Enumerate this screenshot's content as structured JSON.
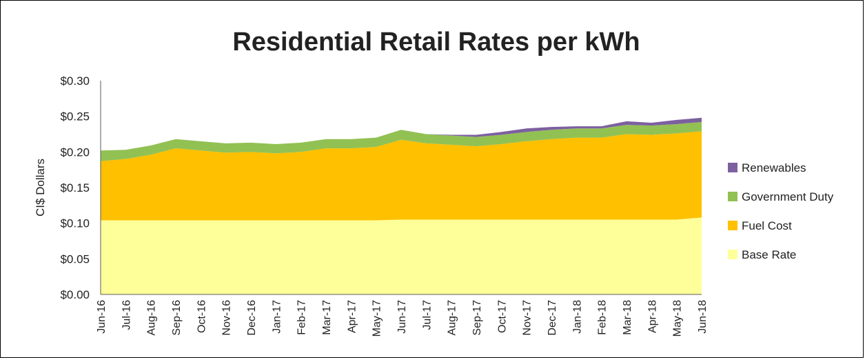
{
  "chart_data": {
    "type": "area",
    "stacked": true,
    "title": "Residential Retail Rates per kWh",
    "ylabel": "CI$ Dollars",
    "xlabel": "",
    "ylim": [
      0,
      0.3
    ],
    "yticks": [
      "$0.00",
      "$0.05",
      "$0.10",
      "$0.15",
      "$0.20",
      "$0.25",
      "$0.30"
    ],
    "ytick_values": [
      0,
      0.05,
      0.1,
      0.15,
      0.2,
      0.25,
      0.3
    ],
    "grid": false,
    "legend_position": "right",
    "categories": [
      "Jun-16",
      "Jul-16",
      "Aug-16",
      "Sep-16",
      "Oct-16",
      "Nov-16",
      "Dec-16",
      "Jan-17",
      "Feb-17",
      "Mar-17",
      "Apr-17",
      "May-17",
      "Jun-17",
      "Jul-17",
      "Aug-17",
      "Sep-17",
      "Oct-17",
      "Nov-17",
      "Dec-17",
      "Jan-18",
      "Feb-18",
      "Mar-18",
      "Apr-18",
      "May-18",
      "Jun-18"
    ],
    "series": [
      {
        "name": "Base Rate",
        "color": "#FFFF99",
        "values": [
          0.104,
          0.104,
          0.104,
          0.104,
          0.104,
          0.104,
          0.104,
          0.104,
          0.104,
          0.104,
          0.104,
          0.104,
          0.105,
          0.105,
          0.105,
          0.105,
          0.105,
          0.105,
          0.105,
          0.105,
          0.105,
          0.105,
          0.105,
          0.105,
          0.108
        ]
      },
      {
        "name": "Fuel Cost",
        "color": "#FFC000",
        "values": [
          0.083,
          0.086,
          0.092,
          0.101,
          0.098,
          0.095,
          0.096,
          0.094,
          0.096,
          0.101,
          0.101,
          0.103,
          0.112,
          0.107,
          0.105,
          0.103,
          0.106,
          0.11,
          0.113,
          0.115,
          0.115,
          0.12,
          0.119,
          0.121,
          0.121
        ]
      },
      {
        "name": "Government Duty",
        "color": "#92C153",
        "values": [
          0.015,
          0.013,
          0.013,
          0.013,
          0.013,
          0.013,
          0.013,
          0.013,
          0.013,
          0.013,
          0.013,
          0.013,
          0.014,
          0.013,
          0.013,
          0.013,
          0.013,
          0.013,
          0.013,
          0.013,
          0.013,
          0.013,
          0.013,
          0.013,
          0.013
        ]
      },
      {
        "name": "Renewables",
        "color": "#7D60A0",
        "values": [
          0,
          0,
          0,
          0,
          0,
          0,
          0,
          0,
          0,
          0,
          0,
          0,
          0,
          0,
          0.001,
          0.003,
          0.004,
          0.005,
          0.004,
          0.003,
          0.003,
          0.005,
          0.004,
          0.006,
          0.006
        ]
      }
    ]
  }
}
